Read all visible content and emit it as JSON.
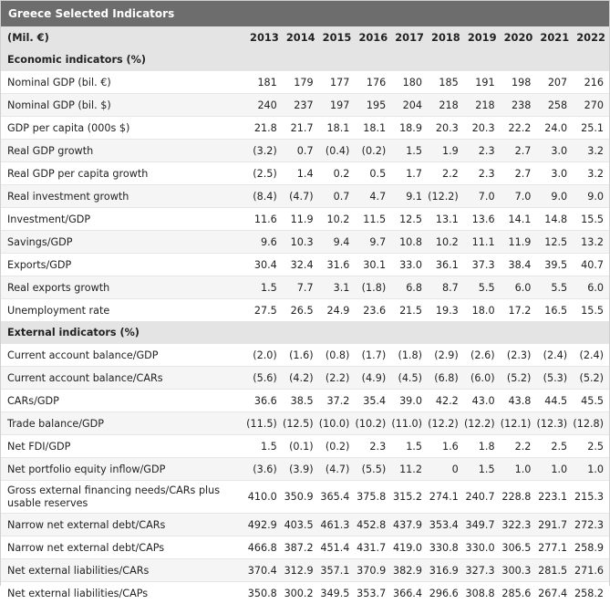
{
  "title": "Greece Selected Indicators",
  "unit_label": "(Mil. €)",
  "years": [
    "2013",
    "2014",
    "2015",
    "2016",
    "2017",
    "2018",
    "2019",
    "2020",
    "2021",
    "2022"
  ],
  "sections": [
    {
      "heading": "Economic indicators (%)",
      "rows": [
        {
          "label": "Nominal GDP (bil. €)",
          "values": [
            "181",
            "179",
            "177",
            "176",
            "180",
            "185",
            "191",
            "198",
            "207",
            "216"
          ]
        },
        {
          "label": "Nominal GDP (bil. $)",
          "values": [
            "240",
            "237",
            "197",
            "195",
            "204",
            "218",
            "218",
            "238",
            "258",
            "270"
          ]
        },
        {
          "label": "GDP per capita (000s $)",
          "values": [
            "21.8",
            "21.7",
            "18.1",
            "18.1",
            "18.9",
            "20.3",
            "20.3",
            "22.2",
            "24.0",
            "25.1"
          ]
        },
        {
          "label": "Real GDP growth",
          "values": [
            "(3.2)",
            "0.7",
            "(0.4)",
            "(0.2)",
            "1.5",
            "1.9",
            "2.3",
            "2.7",
            "3.0",
            "3.2"
          ]
        },
        {
          "label": "Real GDP per capita growth",
          "values": [
            "(2.5)",
            "1.4",
            "0.2",
            "0.5",
            "1.7",
            "2.2",
            "2.3",
            "2.7",
            "3.0",
            "3.2"
          ]
        },
        {
          "label": "Real investment growth",
          "values": [
            "(8.4)",
            "(4.7)",
            "0.7",
            "4.7",
            "9.1",
            "(12.2)",
            "7.0",
            "7.0",
            "9.0",
            "9.0"
          ]
        },
        {
          "label": "Investment/GDP",
          "values": [
            "11.6",
            "11.9",
            "10.2",
            "11.5",
            "12.5",
            "13.1",
            "13.6",
            "14.1",
            "14.8",
            "15.5"
          ]
        },
        {
          "label": "Savings/GDP",
          "values": [
            "9.6",
            "10.3",
            "9.4",
            "9.7",
            "10.8",
            "10.2",
            "11.1",
            "11.9",
            "12.5",
            "13.2"
          ]
        },
        {
          "label": "Exports/GDP",
          "values": [
            "30.4",
            "32.4",
            "31.6",
            "30.1",
            "33.0",
            "36.1",
            "37.3",
            "38.4",
            "39.5",
            "40.7"
          ]
        },
        {
          "label": "Real exports growth",
          "values": [
            "1.5",
            "7.7",
            "3.1",
            "(1.8)",
            "6.8",
            "8.7",
            "5.5",
            "6.0",
            "5.5",
            "6.0"
          ]
        },
        {
          "label": "Unemployment rate",
          "values": [
            "27.5",
            "26.5",
            "24.9",
            "23.6",
            "21.5",
            "19.3",
            "18.0",
            "17.2",
            "16.5",
            "15.5"
          ]
        }
      ]
    },
    {
      "heading": "External indicators (%)",
      "rows": [
        {
          "label": "Current account balance/GDP",
          "values": [
            "(2.0)",
            "(1.6)",
            "(0.8)",
            "(1.7)",
            "(1.8)",
            "(2.9)",
            "(2.6)",
            "(2.3)",
            "(2.4)",
            "(2.4)"
          ]
        },
        {
          "label": "Current account balance/CARs",
          "values": [
            "(5.6)",
            "(4.2)",
            "(2.2)",
            "(4.9)",
            "(4.5)",
            "(6.8)",
            "(6.0)",
            "(5.2)",
            "(5.3)",
            "(5.2)"
          ]
        },
        {
          "label": "CARs/GDP",
          "values": [
            "36.6",
            "38.5",
            "37.2",
            "35.4",
            "39.0",
            "42.2",
            "43.0",
            "43.8",
            "44.5",
            "45.5"
          ]
        },
        {
          "label": "Trade balance/GDP",
          "values": [
            "(11.5)",
            "(12.5)",
            "(10.0)",
            "(10.2)",
            "(11.0)",
            "(12.2)",
            "(12.2)",
            "(12.1)",
            "(12.3)",
            "(12.8)"
          ]
        },
        {
          "label": "Net FDI/GDP",
          "values": [
            "1.5",
            "(0.1)",
            "(0.2)",
            "2.3",
            "1.5",
            "1.6",
            "1.8",
            "2.2",
            "2.5",
            "2.5"
          ]
        },
        {
          "label": "Net portfolio equity inflow/GDP",
          "values": [
            "(3.6)",
            "(3.9)",
            "(4.7)",
            "(5.5)",
            "11.2",
            "0",
            "1.5",
            "1.0",
            "1.0",
            "1.0"
          ]
        },
        {
          "label": "Gross external financing needs/CARs plus usable reserves",
          "tall": true,
          "values": [
            "410.0",
            "350.9",
            "365.4",
            "375.8",
            "315.2",
            "274.1",
            "240.7",
            "228.8",
            "223.1",
            "215.3"
          ]
        },
        {
          "label": "Narrow net external debt/CARs",
          "values": [
            "492.9",
            "403.5",
            "461.3",
            "452.8",
            "437.9",
            "353.4",
            "349.7",
            "322.3",
            "291.7",
            "272.3"
          ]
        },
        {
          "label": "Narrow net external debt/CAPs",
          "values": [
            "466.8",
            "387.2",
            "451.4",
            "431.7",
            "419.0",
            "330.8",
            "330.0",
            "306.5",
            "277.1",
            "258.9"
          ]
        },
        {
          "label": "Net external liabilities/CARs",
          "values": [
            "370.4",
            "312.9",
            "357.1",
            "370.9",
            "382.9",
            "316.9",
            "327.3",
            "300.3",
            "281.5",
            "271.6"
          ]
        },
        {
          "label": "Net external liabilities/CAPs",
          "values": [
            "350.8",
            "300.2",
            "349.5",
            "353.7",
            "366.4",
            "296.6",
            "308.8",
            "285.6",
            "267.4",
            "258.2"
          ]
        }
      ]
    }
  ]
}
